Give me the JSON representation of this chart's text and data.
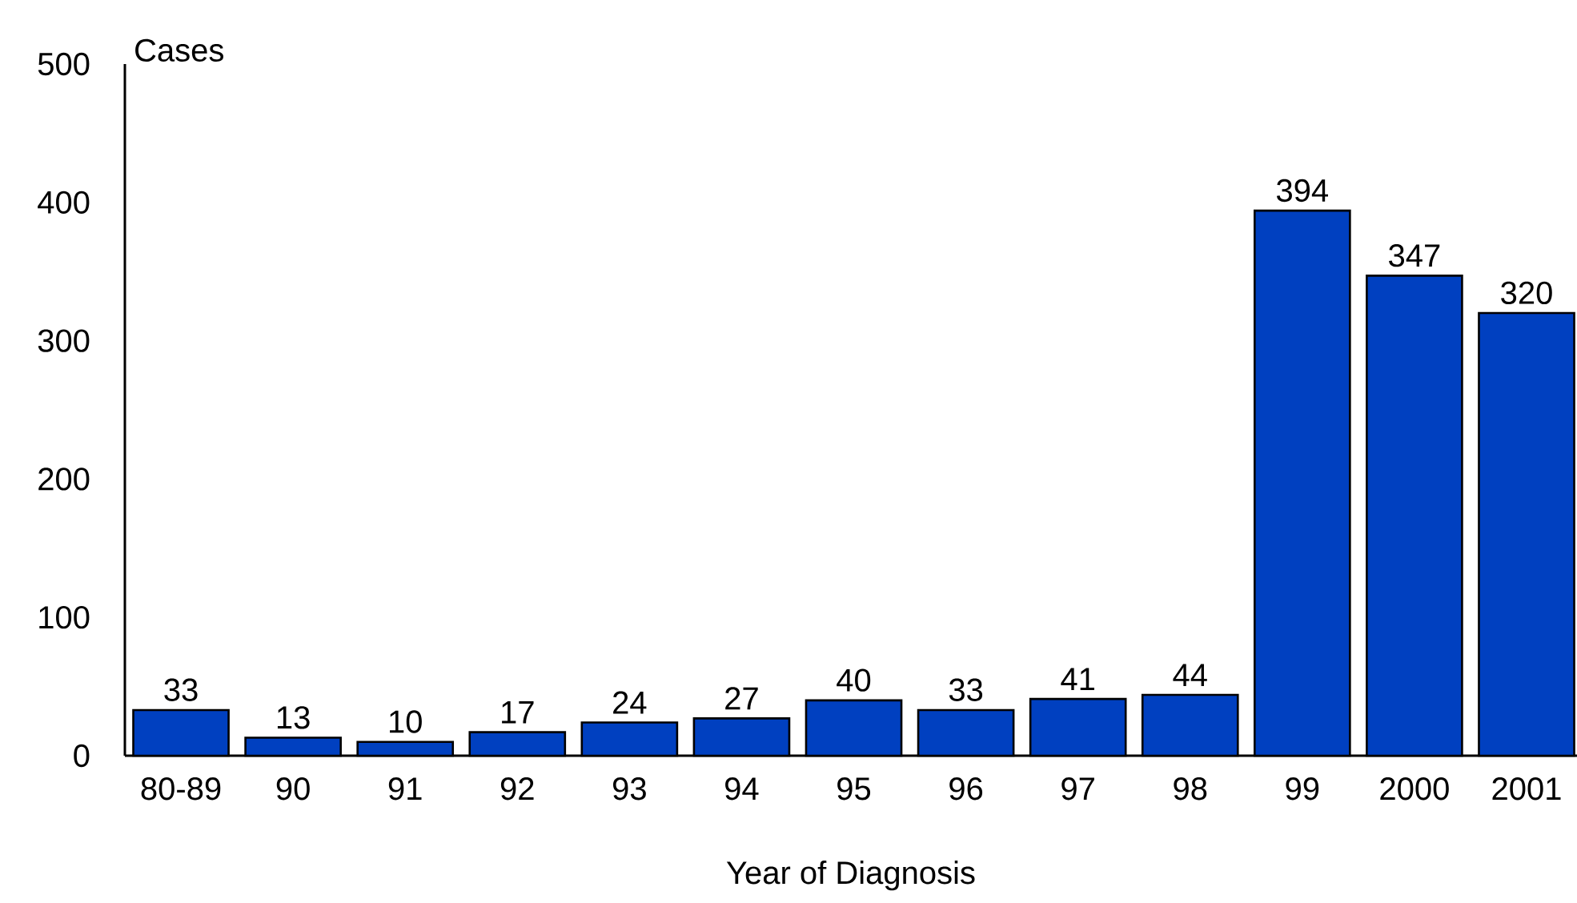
{
  "chart_data": {
    "type": "bar",
    "xlabel": "Year of Diagnosis",
    "ylabel": "Cases",
    "categories": [
      "80-89",
      "90",
      "91",
      "92",
      "93",
      "94",
      "95",
      "96",
      "97",
      "98",
      "99",
      "2000",
      "2001"
    ],
    "values": [
      33,
      13,
      10,
      17,
      24,
      27,
      40,
      33,
      41,
      44,
      394,
      347,
      320
    ],
    "color": "#0040c0",
    "ylim": [
      0,
      500
    ],
    "yticks": [
      0,
      100,
      200,
      300,
      400,
      500
    ],
    "data_labels": true
  }
}
